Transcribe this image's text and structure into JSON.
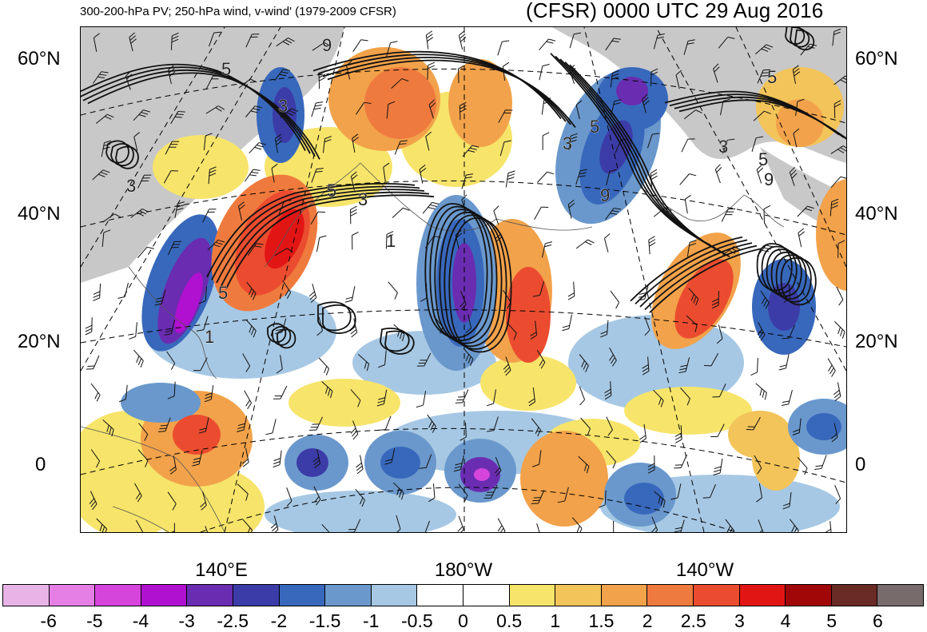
{
  "title_left": "300-200-hPa PV; 250-hPa wind, v-wind' (1979-2009 CFSR)",
  "title_right": "(CFSR) 0000 UTC 29 Aug 2016",
  "lat_labels": [
    "60°N",
    "40°N",
    "20°N",
    "0"
  ],
  "lon_labels": [
    "140°E",
    "180°W",
    "140°W"
  ],
  "contour_labels": [
    "9",
    "5",
    "3",
    "3",
    "5",
    "5",
    "3",
    "1",
    "5",
    "3",
    "9",
    "3",
    "5",
    "9",
    "5",
    "1"
  ],
  "colorbar": {
    "colors": [
      "#e8b4e8",
      "#e57fe6",
      "#d545dc",
      "#b010d0",
      "#6a2cb0",
      "#3c3ca8",
      "#3868bc",
      "#6a98cc",
      "#a6c8e4",
      "#ffffff",
      "#ffffff",
      "#f7e46a",
      "#f3c45a",
      "#f2a24a",
      "#ef7a3e",
      "#eb4c2f",
      "#e21515",
      "#a00808",
      "#6a2a26",
      "#786b6b"
    ],
    "labels": [
      "-6",
      "-5",
      "-4",
      "-3",
      "-2.5",
      "-2",
      "-1.5",
      "-1",
      "-0.5",
      "0",
      "0.5",
      "1",
      "1.5",
      "2",
      "2.5",
      "3",
      "4",
      "5",
      "6"
    ]
  }
}
